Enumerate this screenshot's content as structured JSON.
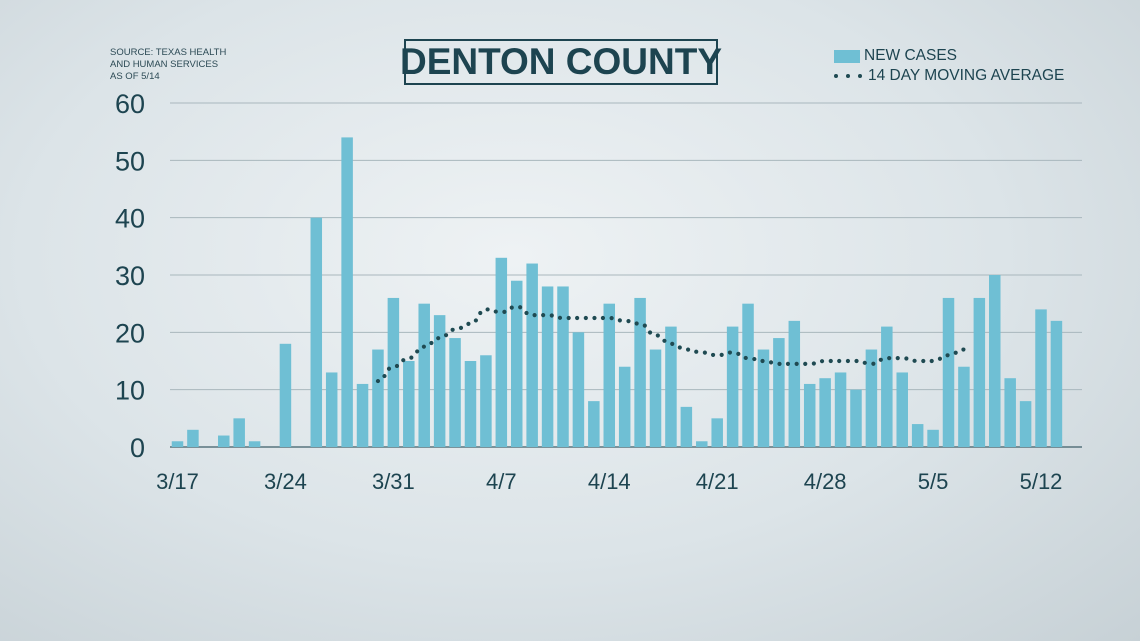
{
  "source": {
    "lines": [
      "Source: TEXAS HEALTH",
      "AND HUMAN SERVICES",
      "AS OF 5/14"
    ]
  },
  "chart_data": {
    "type": "bar",
    "title": "DENTON COUNTY",
    "xlabel": "",
    "ylabel": "",
    "ylim": [
      0,
      60
    ],
    "yticks": [
      "0",
      "10",
      "20",
      "30",
      "40",
      "50",
      "60"
    ],
    "grid": true,
    "legend_position": "top-right",
    "x_tick_labels": [
      {
        "index": 0,
        "label": "3/17"
      },
      {
        "index": 7,
        "label": "3/24"
      },
      {
        "index": 14,
        "label": "3/31"
      },
      {
        "index": 21,
        "label": "4/7"
      },
      {
        "index": 28,
        "label": "4/14"
      },
      {
        "index": 35,
        "label": "4/21"
      },
      {
        "index": 42,
        "label": "4/28"
      },
      {
        "index": 49,
        "label": "5/5"
      },
      {
        "index": 56,
        "label": "5/12"
      }
    ],
    "series": [
      {
        "name": "NEW CASES",
        "kind": "bar",
        "color": "#6fbfd4",
        "values": [
          1,
          3,
          0,
          2,
          5,
          1,
          0,
          18,
          0,
          40,
          13,
          54,
          11,
          17,
          26,
          15,
          25,
          23,
          19,
          15,
          16,
          33,
          29,
          32,
          28,
          28,
          20,
          8,
          25,
          14,
          26,
          17,
          21,
          7,
          1,
          5,
          21,
          25,
          17,
          19,
          22,
          11,
          12,
          13,
          10,
          17,
          21,
          13,
          4,
          3,
          26,
          14,
          26,
          30,
          12,
          8,
          24,
          22
        ]
      },
      {
        "name": "14 DAY MOVING AVERAGE",
        "kind": "line",
        "style": "dotted",
        "color": "#1f4a52",
        "start_index": 13,
        "values": [
          11.5,
          14,
          15.5,
          17.5,
          19,
          20.5,
          21.5,
          24,
          23.5,
          24.5,
          23,
          23,
          22.5,
          22.5,
          22.5,
          22.5,
          22,
          21.5,
          19.5,
          18,
          17,
          16.5,
          16,
          16.5,
          15.5,
          15,
          14.5,
          14.5,
          14.5,
          15,
          15,
          15,
          14.5,
          15.5,
          15.5,
          15,
          15,
          16,
          17
        ]
      }
    ]
  }
}
